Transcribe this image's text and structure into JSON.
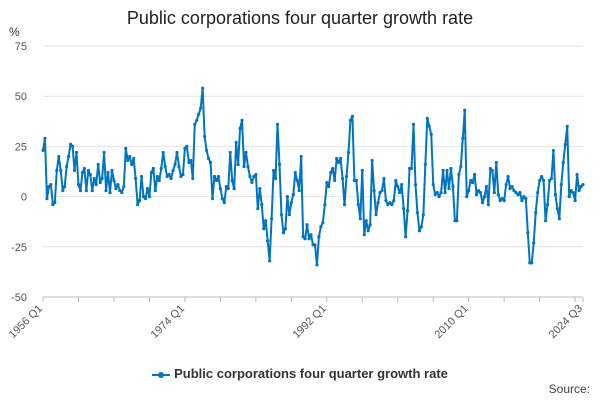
{
  "chart_data": {
    "type": "line",
    "title": "Public corporations four quarter growth rate",
    "ylabel": "%",
    "xlabel": "",
    "ylim": [
      -50,
      75
    ],
    "yticks": [
      -50,
      -25,
      0,
      25,
      50,
      75
    ],
    "xtick_labels": [
      "1956 Q1",
      "1974 Q1",
      "1992 Q1",
      "2010 Q1",
      "2024 Q3"
    ],
    "x_start": "1956 Q1",
    "x_end": "2024 Q3",
    "grid": true,
    "legend_position": "bottom",
    "color": "#0075be",
    "series": [
      {
        "name": "Public corporations four quarter growth rate",
        "values": [
          23,
          29,
          -1,
          5,
          6,
          -4,
          -3,
          13,
          20,
          13,
          3,
          5,
          15,
          20,
          26,
          25,
          13,
          22,
          6,
          3,
          12,
          14,
          3,
          13,
          11,
          3,
          9,
          6,
          16,
          7,
          9,
          22,
          3,
          12,
          2,
          13,
          8,
          4,
          6,
          3,
          2,
          5,
          24,
          18,
          20,
          16,
          19,
          9,
          -4,
          -2,
          10,
          0,
          -1,
          4,
          0,
          12,
          14,
          3,
          10,
          8,
          14,
          22,
          15,
          10,
          11,
          9,
          13,
          16,
          22,
          15,
          10,
          11,
          24,
          25,
          17,
          18,
          9,
          36,
          38,
          41,
          44,
          54,
          30,
          23,
          19,
          17,
          -1,
          10,
          8,
          10,
          4,
          -1,
          -3,
          5,
          4,
          22,
          8,
          4,
          27,
          16,
          34,
          38,
          15,
          22,
          15,
          10,
          7,
          10,
          11,
          -6,
          4,
          -4,
          -16,
          -12,
          -22,
          -32,
          -11,
          13,
          9,
          36,
          16,
          -9,
          -18,
          -16,
          0,
          -9,
          -3,
          1,
          12,
          8,
          3,
          20,
          -20,
          -21,
          -14,
          -21,
          -19,
          -24,
          -24,
          -34,
          -20,
          -15,
          -13,
          -4,
          7,
          5,
          12,
          14,
          8,
          19,
          17,
          19,
          9,
          -4,
          10,
          22,
          38,
          40,
          8,
          8,
          -4,
          -11,
          13,
          -19,
          -12,
          -17,
          -14,
          18,
          3,
          -9,
          -3,
          2,
          3,
          9,
          -2,
          -4,
          -3,
          -4,
          -2,
          8,
          5,
          2,
          6,
          -6,
          -20,
          -7,
          14,
          14,
          36,
          6,
          -8,
          -17,
          -15,
          -9,
          16,
          39,
          35,
          31,
          6,
          1,
          2,
          0,
          2,
          13,
          2,
          13,
          4,
          14,
          5,
          -12,
          -12,
          11,
          15,
          29,
          43,
          0,
          3,
          8,
          7,
          11,
          1,
          3,
          2,
          -3,
          0,
          5,
          -4,
          14,
          13,
          2,
          17,
          1,
          -2,
          -1,
          -2,
          6,
          10,
          4,
          5,
          3,
          2,
          1,
          2,
          -2,
          0,
          -1,
          -18,
          -33,
          -33,
          -23,
          -8,
          2,
          8,
          10,
          8,
          -12,
          -4,
          8,
          9,
          23,
          1,
          -6,
          -11,
          6,
          17,
          26,
          35,
          0,
          3,
          2,
          -2,
          11,
          3,
          5,
          6
        ]
      }
    ]
  },
  "source_label": "Source:"
}
